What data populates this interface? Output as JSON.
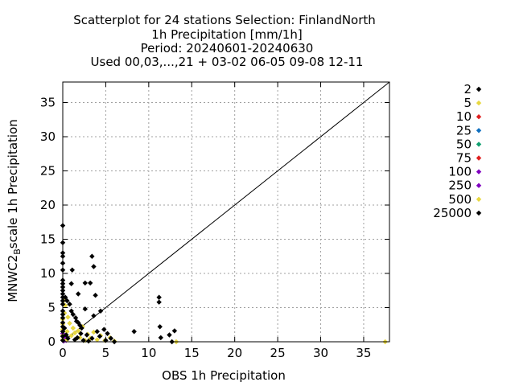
{
  "chart_data": {
    "type": "scatter",
    "title_lines": [
      "Scatterplot for   24 stations Selection: FinlandNorth",
      "1h Precipitation [mm/1h]",
      "Period: 20240601-20240630",
      "Used 00,03,...,21 + 03-02 06-05 09-08 12-11"
    ],
    "xlabel": "OBS 1h Precipitation",
    "ylabel": "MNWC2Bscale 1h Precipitation",
    "xlim": [
      0,
      38
    ],
    "ylim": [
      0,
      38
    ],
    "x_ticks": [
      "0",
      "5",
      "10",
      "15",
      "20",
      "25",
      "30",
      "35"
    ],
    "y_ticks": [
      "0",
      "5",
      "10",
      "15",
      "20",
      "25",
      "30",
      "35"
    ],
    "grid": true,
    "legend_position": "right",
    "diagonal_line": true,
    "series": [
      {
        "name": "2",
        "color": "#000000",
        "points": []
      },
      {
        "name": "5",
        "color": "#e8d840",
        "points": []
      },
      {
        "name": "10",
        "color": "#e02020",
        "points": []
      },
      {
        "name": "25",
        "color": "#1070c0",
        "points": []
      },
      {
        "name": "50",
        "color": "#10a070",
        "points": []
      },
      {
        "name": "75",
        "color": "#e02020",
        "points": []
      },
      {
        "name": "100",
        "color": "#8000c0",
        "points": [
          [
            0.1,
            0.8
          ],
          [
            0.2,
            0.5
          ],
          [
            0.4,
            0.2
          ],
          [
            0.0,
            1.2
          ]
        ]
      },
      {
        "name": "250",
        "color": "#8000c0",
        "points": [
          [
            0.3,
            0.4
          ],
          [
            0.1,
            0.1
          ]
        ]
      },
      {
        "name": "500",
        "color": "#e8d840",
        "points": [
          [
            0,
            0.3
          ],
          [
            0,
            0.9
          ],
          [
            0,
            1.8
          ],
          [
            0,
            2.6
          ],
          [
            0,
            3.3
          ],
          [
            0.2,
            4.2
          ],
          [
            0.5,
            1.5
          ],
          [
            0.5,
            0.3
          ],
          [
            0.8,
            2.7
          ],
          [
            1.0,
            0.9
          ],
          [
            1.2,
            2.0
          ],
          [
            1.5,
            0.4
          ],
          [
            1.8,
            1.6
          ],
          [
            2.0,
            0.6
          ],
          [
            2.3,
            2.2
          ],
          [
            2.6,
            0.2
          ],
          [
            2.9,
            1.1
          ],
          [
            3.2,
            0.5
          ],
          [
            3.6,
            1.4
          ],
          [
            4.0,
            0.3
          ],
          [
            4.4,
            0.9
          ],
          [
            4.9,
            0.2
          ],
          [
            5.5,
            0.6
          ],
          [
            6.0,
            0.1
          ],
          [
            0.3,
            5.3
          ],
          [
            0.1,
            6.0
          ],
          [
            13.2,
            0.0
          ],
          [
            37.5,
            0.0
          ],
          [
            0.6,
            3.6
          ],
          [
            1.4,
            1.3
          ]
        ]
      },
      {
        "name": "25000",
        "color": "#000000",
        "points": [
          [
            0,
            17.0
          ],
          [
            0,
            14.5
          ],
          [
            0,
            13.0
          ],
          [
            0,
            12.5
          ],
          [
            0,
            11.5
          ],
          [
            0,
            10.5
          ],
          [
            0,
            9.0
          ],
          [
            0,
            8.5
          ],
          [
            0,
            8.0
          ],
          [
            0,
            7.5
          ],
          [
            0,
            7.0
          ],
          [
            0,
            6.5
          ],
          [
            0,
            6.0
          ],
          [
            0,
            5.5
          ],
          [
            0,
            4.5
          ],
          [
            0,
            4.0
          ],
          [
            0,
            3.5
          ],
          [
            0,
            2.8
          ],
          [
            0,
            2.2
          ],
          [
            0,
            1.5
          ],
          [
            0,
            0.8
          ],
          [
            0,
            0.2
          ],
          [
            0.3,
            6.5
          ],
          [
            0.5,
            6.0
          ],
          [
            0.8,
            5.5
          ],
          [
            1.0,
            4.5
          ],
          [
            1.2,
            4.0
          ],
          [
            1.5,
            3.5
          ],
          [
            1.6,
            3.0
          ],
          [
            1.8,
            2.8
          ],
          [
            2.0,
            2.4
          ],
          [
            2.2,
            2.0
          ],
          [
            1.1,
            10.5
          ],
          [
            1.0,
            8.5
          ],
          [
            2.6,
            8.6
          ],
          [
            3.4,
            12.5
          ],
          [
            3.6,
            11.0
          ],
          [
            3.2,
            8.6
          ],
          [
            3.8,
            6.8
          ],
          [
            2.6,
            4.8
          ],
          [
            3.6,
            3.8
          ],
          [
            4.4,
            4.5
          ],
          [
            1.8,
            7.0
          ],
          [
            2.1,
            1.2
          ],
          [
            2.8,
            1.0
          ],
          [
            3.4,
            0.5
          ],
          [
            4.0,
            1.5
          ],
          [
            4.8,
            1.8
          ],
          [
            5.2,
            1.2
          ],
          [
            5.6,
            0.5
          ],
          [
            8.3,
            1.5
          ],
          [
            11.2,
            6.5
          ],
          [
            11.2,
            5.8
          ],
          [
            11.3,
            2.2
          ],
          [
            11.4,
            0.6
          ],
          [
            12.4,
            1.0
          ],
          [
            13.0,
            1.6
          ],
          [
            12.7,
            0.0
          ],
          [
            0.6,
            0.5
          ],
          [
            1.4,
            0.3
          ],
          [
            0.4,
            1.0
          ],
          [
            1.7,
            0.6
          ],
          [
            2.4,
            0.2
          ],
          [
            3.0,
            0.1
          ],
          [
            0.2,
            2.0
          ],
          [
            5.0,
            0.2
          ],
          [
            6.0,
            0.0
          ],
          [
            4.3,
            0.8
          ]
        ]
      }
    ]
  }
}
